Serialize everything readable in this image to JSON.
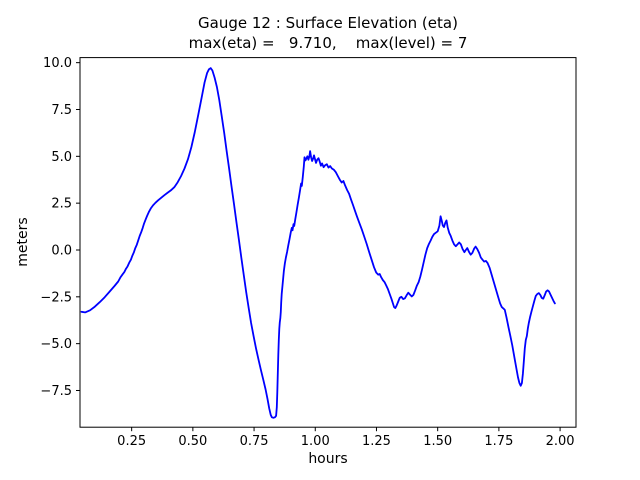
{
  "chart_data": {
    "type": "line",
    "title": "Gauge 12 : Surface Elevation (eta)",
    "subtitle": "max(eta) =   9.710,    max(level) = 7",
    "xlabel": "hours",
    "ylabel": "meters",
    "xlim": [
      0.039,
      2.065
    ],
    "ylim": [
      -9.46,
      10.27
    ],
    "x_ticks": [
      0.25,
      0.5,
      0.75,
      1.0,
      1.25,
      1.5,
      1.75,
      2.0
    ],
    "x_tick_labels": [
      "0.25",
      "0.50",
      "0.75",
      "1.00",
      "1.25",
      "1.50",
      "1.75",
      "2.00"
    ],
    "y_ticks": [
      10.0,
      7.5,
      5.0,
      2.5,
      0.0,
      -2.5,
      -5.0,
      -7.5
    ],
    "y_tick_labels": [
      "10.0",
      "7.5",
      "5.0",
      "2.5",
      "0.0",
      "−2.5",
      "−5.0",
      "−7.5"
    ],
    "grid": false,
    "legend": null,
    "line_color": "#0000ff",
    "line_width": 1.8,
    "max_eta": 9.71,
    "max_level": 7,
    "series": [
      {
        "name": "eta",
        "points": [
          [
            0.045,
            -3.3
          ],
          [
            0.06,
            -3.33
          ],
          [
            0.08,
            -3.22
          ],
          [
            0.1,
            -3.02
          ],
          [
            0.12,
            -2.78
          ],
          [
            0.14,
            -2.52
          ],
          [
            0.16,
            -2.22
          ],
          [
            0.18,
            -1.92
          ],
          [
            0.195,
            -1.68
          ],
          [
            0.205,
            -1.45
          ],
          [
            0.213,
            -1.3
          ],
          [
            0.22,
            -1.18
          ],
          [
            0.227,
            -1.0
          ],
          [
            0.233,
            -0.88
          ],
          [
            0.24,
            -0.68
          ],
          [
            0.247,
            -0.52
          ],
          [
            0.253,
            -0.3
          ],
          [
            0.259,
            -0.12
          ],
          [
            0.265,
            0.1
          ],
          [
            0.271,
            0.28
          ],
          [
            0.277,
            0.52
          ],
          [
            0.283,
            0.75
          ],
          [
            0.289,
            0.95
          ],
          [
            0.295,
            1.18
          ],
          [
            0.301,
            1.42
          ],
          [
            0.307,
            1.62
          ],
          [
            0.313,
            1.82
          ],
          [
            0.32,
            2.02
          ],
          [
            0.328,
            2.22
          ],
          [
            0.337,
            2.38
          ],
          [
            0.347,
            2.52
          ],
          [
            0.358,
            2.65
          ],
          [
            0.37,
            2.78
          ],
          [
            0.383,
            2.92
          ],
          [
            0.396,
            3.05
          ],
          [
            0.41,
            3.18
          ],
          [
            0.424,
            3.35
          ],
          [
            0.438,
            3.62
          ],
          [
            0.452,
            3.95
          ],
          [
            0.466,
            4.35
          ],
          [
            0.48,
            4.85
          ],
          [
            0.494,
            5.5
          ],
          [
            0.508,
            6.3
          ],
          [
            0.522,
            7.2
          ],
          [
            0.536,
            8.15
          ],
          [
            0.548,
            8.95
          ],
          [
            0.558,
            9.45
          ],
          [
            0.566,
            9.65
          ],
          [
            0.573,
            9.71
          ],
          [
            0.58,
            9.58
          ],
          [
            0.589,
            9.2
          ],
          [
            0.598,
            8.7
          ],
          [
            0.608,
            8.0
          ],
          [
            0.618,
            7.15
          ],
          [
            0.628,
            6.25
          ],
          [
            0.638,
            5.3
          ],
          [
            0.648,
            4.35
          ],
          [
            0.658,
            3.4
          ],
          [
            0.668,
            2.45
          ],
          [
            0.678,
            1.5
          ],
          [
            0.688,
            0.55
          ],
          [
            0.698,
            -0.4
          ],
          [
            0.708,
            -1.35
          ],
          [
            0.718,
            -2.25
          ],
          [
            0.728,
            -3.1
          ],
          [
            0.738,
            -3.9
          ],
          [
            0.748,
            -4.6
          ],
          [
            0.758,
            -5.25
          ],
          [
            0.768,
            -5.85
          ],
          [
            0.778,
            -6.4
          ],
          [
            0.788,
            -6.95
          ],
          [
            0.797,
            -7.45
          ],
          [
            0.805,
            -7.95
          ],
          [
            0.812,
            -8.45
          ],
          [
            0.818,
            -8.8
          ],
          [
            0.823,
            -8.93
          ],
          [
            0.829,
            -8.96
          ],
          [
            0.835,
            -8.93
          ],
          [
            0.84,
            -8.85
          ],
          [
            0.843,
            -8.4
          ],
          [
            0.845,
            -7.6
          ],
          [
            0.847,
            -6.6
          ],
          [
            0.849,
            -5.6
          ],
          [
            0.851,
            -4.8
          ],
          [
            0.853,
            -4.2
          ],
          [
            0.855,
            -3.85
          ],
          [
            0.857,
            -3.65
          ],
          [
            0.859,
            -3.3
          ],
          [
            0.861,
            -2.8
          ],
          [
            0.863,
            -2.35
          ],
          [
            0.866,
            -1.9
          ],
          [
            0.869,
            -1.5
          ],
          [
            0.872,
            -1.1
          ],
          [
            0.876,
            -0.7
          ],
          [
            0.88,
            -0.4
          ],
          [
            0.885,
            -0.1
          ],
          [
            0.89,
            0.25
          ],
          [
            0.895,
            0.6
          ],
          [
            0.9,
            0.95
          ],
          [
            0.904,
            1.18
          ],
          [
            0.907,
            1.05
          ],
          [
            0.911,
            1.38
          ],
          [
            0.914,
            1.28
          ],
          [
            0.918,
            1.62
          ],
          [
            0.923,
            2.0
          ],
          [
            0.928,
            2.4
          ],
          [
            0.933,
            2.8
          ],
          [
            0.938,
            3.2
          ],
          [
            0.942,
            3.55
          ],
          [
            0.945,
            3.42
          ],
          [
            0.949,
            3.9
          ],
          [
            0.953,
            4.45
          ],
          [
            0.956,
            4.95
          ],
          [
            0.96,
            4.78
          ],
          [
            0.964,
            4.9
          ],
          [
            0.968,
            5.0
          ],
          [
            0.972,
            4.82
          ],
          [
            0.976,
            5.0
          ],
          [
            0.979,
            5.28
          ],
          [
            0.983,
            4.95
          ],
          [
            0.987,
            4.75
          ],
          [
            0.991,
            4.88
          ],
          [
            0.995,
            5.05
          ],
          [
            0.999,
            4.85
          ],
          [
            1.003,
            4.65
          ],
          [
            1.008,
            4.82
          ],
          [
            1.013,
            4.9
          ],
          [
            1.018,
            4.72
          ],
          [
            1.023,
            4.5
          ],
          [
            1.028,
            4.62
          ],
          [
            1.034,
            4.42
          ],
          [
            1.04,
            4.52
          ],
          [
            1.047,
            4.58
          ],
          [
            1.054,
            4.4
          ],
          [
            1.061,
            4.48
          ],
          [
            1.068,
            4.35
          ],
          [
            1.076,
            4.28
          ],
          [
            1.084,
            4.15
          ],
          [
            1.092,
            3.95
          ],
          [
            1.1,
            3.75
          ],
          [
            1.108,
            3.6
          ],
          [
            1.115,
            3.68
          ],
          [
            1.122,
            3.45
          ],
          [
            1.13,
            3.2
          ],
          [
            1.138,
            3.0
          ],
          [
            1.146,
            2.7
          ],
          [
            1.154,
            2.4
          ],
          [
            1.162,
            2.1
          ],
          [
            1.17,
            1.8
          ],
          [
            1.18,
            1.45
          ],
          [
            1.19,
            1.1
          ],
          [
            1.2,
            0.72
          ],
          [
            1.21,
            0.32
          ],
          [
            1.22,
            -0.1
          ],
          [
            1.23,
            -0.52
          ],
          [
            1.24,
            -0.92
          ],
          [
            1.249,
            -1.2
          ],
          [
            1.257,
            -1.32
          ],
          [
            1.263,
            -1.28
          ],
          [
            1.269,
            -1.45
          ],
          [
            1.276,
            -1.6
          ],
          [
            1.283,
            -1.72
          ],
          [
            1.29,
            -1.9
          ],
          [
            1.297,
            -2.1
          ],
          [
            1.304,
            -2.35
          ],
          [
            1.311,
            -2.6
          ],
          [
            1.317,
            -2.85
          ],
          [
            1.322,
            -3.05
          ],
          [
            1.327,
            -3.1
          ],
          [
            1.332,
            -2.98
          ],
          [
            1.338,
            -2.78
          ],
          [
            1.345,
            -2.55
          ],
          [
            1.352,
            -2.5
          ],
          [
            1.359,
            -2.62
          ],
          [
            1.366,
            -2.58
          ],
          [
            1.373,
            -2.42
          ],
          [
            1.38,
            -2.28
          ],
          [
            1.387,
            -2.38
          ],
          [
            1.394,
            -2.48
          ],
          [
            1.401,
            -2.4
          ],
          [
            1.408,
            -2.15
          ],
          [
            1.415,
            -1.9
          ],
          [
            1.422,
            -1.72
          ],
          [
            1.429,
            -1.42
          ],
          [
            1.436,
            -1.05
          ],
          [
            1.443,
            -0.65
          ],
          [
            1.45,
            -0.25
          ],
          [
            1.457,
            0.1
          ],
          [
            1.464,
            0.32
          ],
          [
            1.471,
            0.5
          ],
          [
            1.478,
            0.7
          ],
          [
            1.485,
            0.85
          ],
          [
            1.492,
            0.92
          ],
          [
            1.5,
            1.0
          ],
          [
            1.507,
            1.3
          ],
          [
            1.512,
            1.8
          ],
          [
            1.517,
            1.55
          ],
          [
            1.521,
            1.3
          ],
          [
            1.526,
            1.22
          ],
          [
            1.531,
            1.45
          ],
          [
            1.536,
            1.58
          ],
          [
            1.541,
            1.2
          ],
          [
            1.547,
            0.92
          ],
          [
            1.553,
            0.75
          ],
          [
            1.56,
            0.5
          ],
          [
            1.567,
            0.3
          ],
          [
            1.574,
            0.2
          ],
          [
            1.581,
            0.3
          ],
          [
            1.588,
            0.4
          ],
          [
            1.595,
            0.3
          ],
          [
            1.602,
            0.05
          ],
          [
            1.609,
            -0.12
          ],
          [
            1.615,
            0.0
          ],
          [
            1.621,
            0.1
          ],
          [
            1.628,
            -0.1
          ],
          [
            1.635,
            -0.25
          ],
          [
            1.642,
            -0.15
          ],
          [
            1.649,
            0.08
          ],
          [
            1.655,
            0.18
          ],
          [
            1.662,
            0.05
          ],
          [
            1.669,
            -0.15
          ],
          [
            1.676,
            -0.4
          ],
          [
            1.683,
            -0.52
          ],
          [
            1.69,
            -0.62
          ],
          [
            1.697,
            -0.58
          ],
          [
            1.704,
            -0.7
          ],
          [
            1.712,
            -0.95
          ],
          [
            1.72,
            -1.3
          ],
          [
            1.729,
            -1.7
          ],
          [
            1.738,
            -2.1
          ],
          [
            1.747,
            -2.5
          ],
          [
            1.755,
            -2.85
          ],
          [
            1.762,
            -3.05
          ],
          [
            1.768,
            -3.12
          ],
          [
            1.774,
            -3.2
          ],
          [
            1.781,
            -3.6
          ],
          [
            1.789,
            -4.1
          ],
          [
            1.797,
            -4.6
          ],
          [
            1.805,
            -5.1
          ],
          [
            1.813,
            -5.7
          ],
          [
            1.821,
            -6.3
          ],
          [
            1.828,
            -6.8
          ],
          [
            1.834,
            -7.1
          ],
          [
            1.839,
            -7.25
          ],
          [
            1.844,
            -7.1
          ],
          [
            1.848,
            -6.6
          ],
          [
            1.852,
            -5.9
          ],
          [
            1.856,
            -5.25
          ],
          [
            1.86,
            -4.8
          ],
          [
            1.864,
            -4.6
          ],
          [
            1.868,
            -4.2
          ],
          [
            1.872,
            -3.9
          ],
          [
            1.877,
            -3.6
          ],
          [
            1.883,
            -3.3
          ],
          [
            1.889,
            -3.0
          ],
          [
            1.895,
            -2.7
          ],
          [
            1.901,
            -2.45
          ],
          [
            1.907,
            -2.35
          ],
          [
            1.913,
            -2.3
          ],
          [
            1.919,
            -2.4
          ],
          [
            1.925,
            -2.55
          ],
          [
            1.931,
            -2.6
          ],
          [
            1.937,
            -2.42
          ],
          [
            1.943,
            -2.22
          ],
          [
            1.949,
            -2.15
          ],
          [
            1.955,
            -2.22
          ],
          [
            1.961,
            -2.38
          ],
          [
            1.967,
            -2.55
          ],
          [
            1.973,
            -2.72
          ],
          [
            1.979,
            -2.85
          ]
        ]
      }
    ]
  },
  "colors": {
    "background": "#ffffff",
    "line": "#0000ff",
    "text": "#000000",
    "spine": "#000000"
  }
}
